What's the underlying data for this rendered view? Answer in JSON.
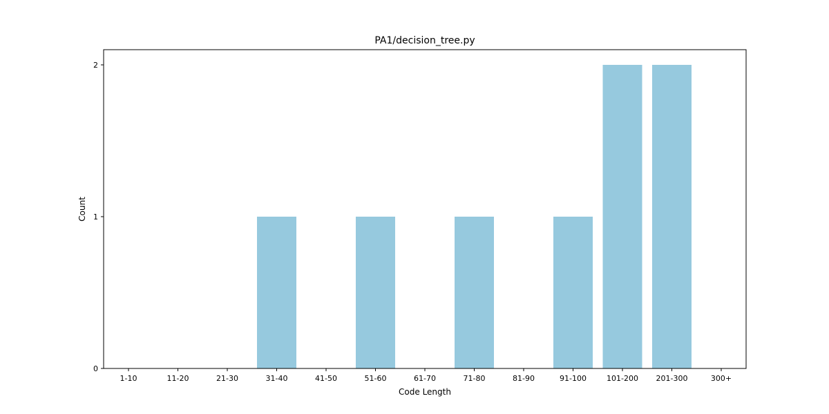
{
  "chart_data": {
    "type": "bar",
    "title": "PA1/decision_tree.py",
    "xlabel": "Code Length",
    "ylabel": "Count",
    "categories": [
      "1-10",
      "11-20",
      "21-30",
      "31-40",
      "41-50",
      "51-60",
      "61-70",
      "71-80",
      "81-90",
      "91-100",
      "101-200",
      "201-300",
      "300+"
    ],
    "values": [
      0,
      0,
      0,
      1,
      0,
      1,
      0,
      1,
      0,
      1,
      2,
      2,
      0
    ],
    "ylim": [
      0,
      2.1
    ],
    "yticks": [
      0,
      1,
      2
    ],
    "grid": false,
    "legend": "none",
    "bar_color": "#96c9de"
  }
}
